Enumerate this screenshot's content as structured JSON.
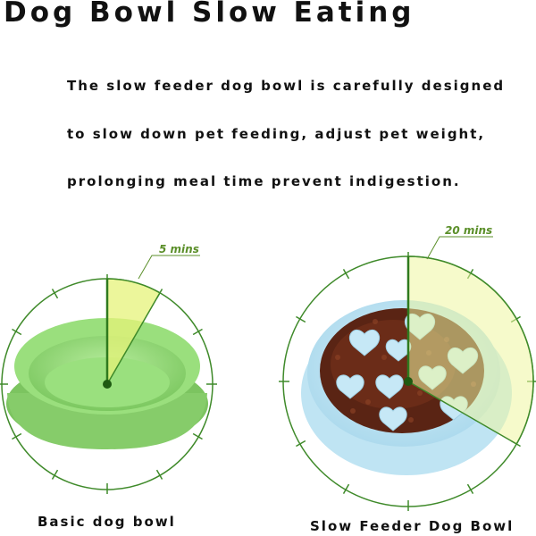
{
  "title": "Dog Bowl Slow Eating",
  "description": [
    "The slow feeder dog bowl is carefully designed",
    "to slow down pet feeding, adjust pet weight,",
    "prolonging meal time prevent indigestion."
  ],
  "bowls": [
    {
      "caption": "Basic dog bowl",
      "time_label": "5 mins",
      "minutes": 5
    },
    {
      "caption": "Slow Feeder Dog Bowl",
      "time_label": "20 mins",
      "minutes": 20
    }
  ],
  "colors": {
    "clock_line": "#3f8a2a",
    "sector_fill": "#e6f37a",
    "basic_bowl": "#8fd873",
    "slow_bowl": "#bde3f2",
    "kibble": "#5a2414",
    "label": "#5b8f2a"
  }
}
